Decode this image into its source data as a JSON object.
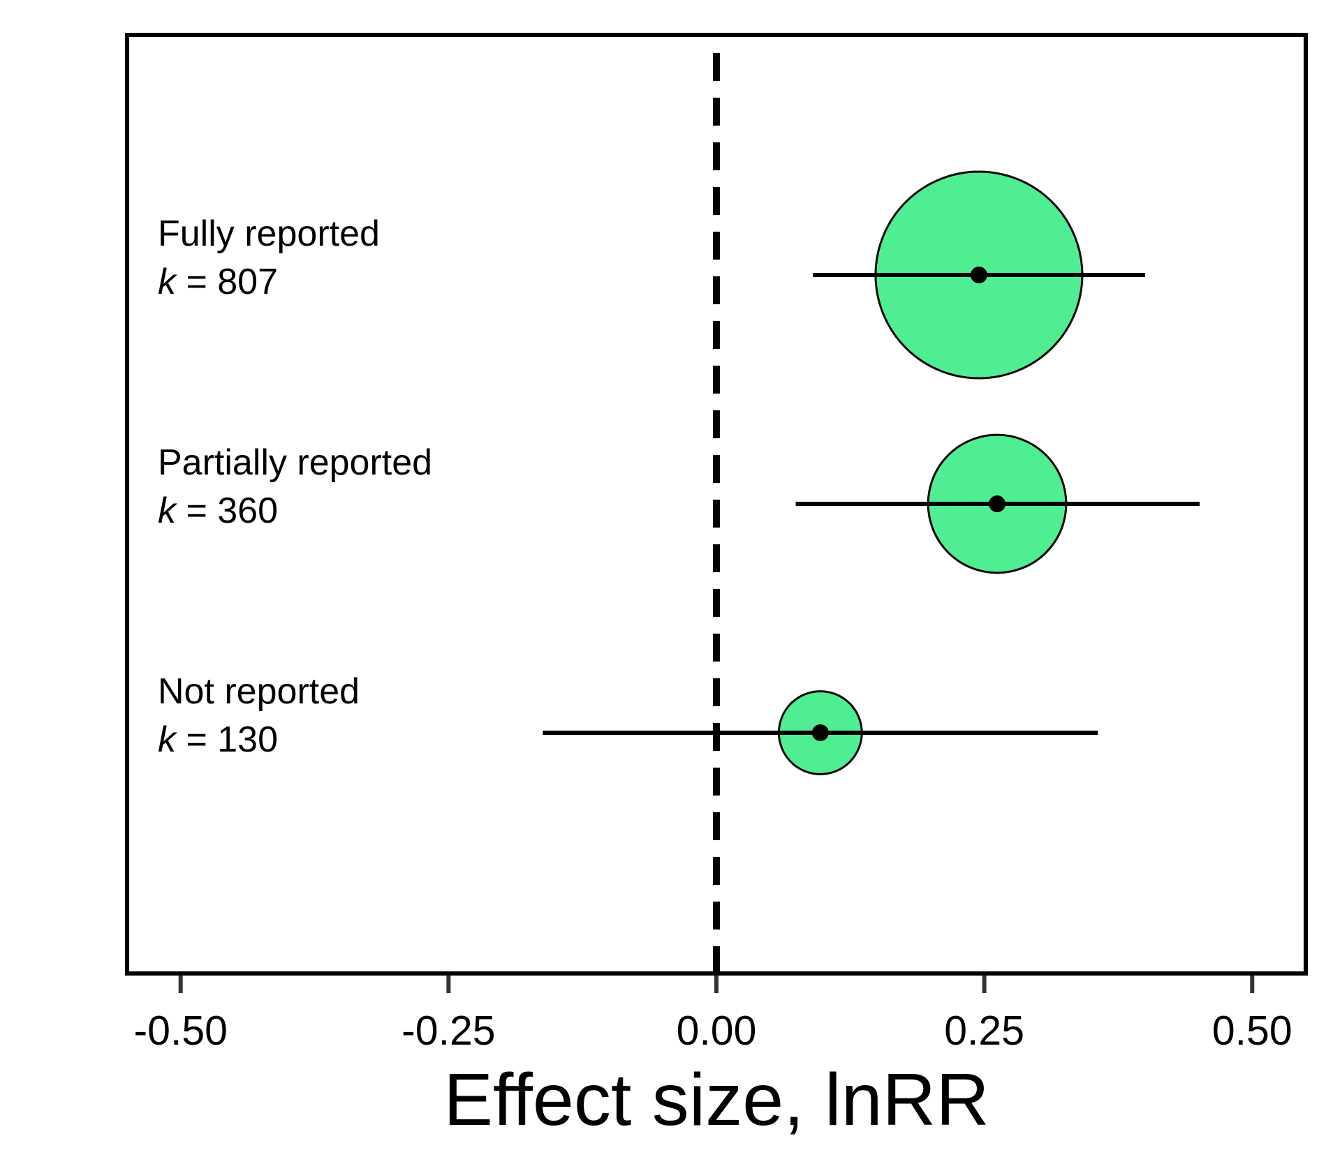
{
  "chart_data": {
    "type": "forest",
    "xlabel": "Effect size, lnRR",
    "xlim": [
      -0.55,
      0.55
    ],
    "xticks": [
      -0.5,
      -0.25,
      0.0,
      0.25,
      0.5
    ],
    "xtick_labels": [
      "-0.50",
      "-0.25",
      "0.00",
      "0.25",
      "0.50"
    ],
    "reference_line": {
      "x": 0.0,
      "style": "dashed"
    },
    "grid": false,
    "point_color": "#50EE92",
    "categories": [
      {
        "label": "Fully reported",
        "k_prefix": "k",
        "k_text": " = 807",
        "k": 807,
        "estimate": 0.245,
        "ci_low": 0.09,
        "ci_high": 0.4
      },
      {
        "label": "Partially reported",
        "k_prefix": "k",
        "k_text": " = 360",
        "k": 360,
        "estimate": 0.262,
        "ci_low": 0.074,
        "ci_high": 0.451
      },
      {
        "label": "Not reported",
        "k_prefix": "k",
        "k_text": " = 130",
        "k": 130,
        "estimate": 0.097,
        "ci_low": -0.162,
        "ci_high": 0.356
      }
    ]
  }
}
